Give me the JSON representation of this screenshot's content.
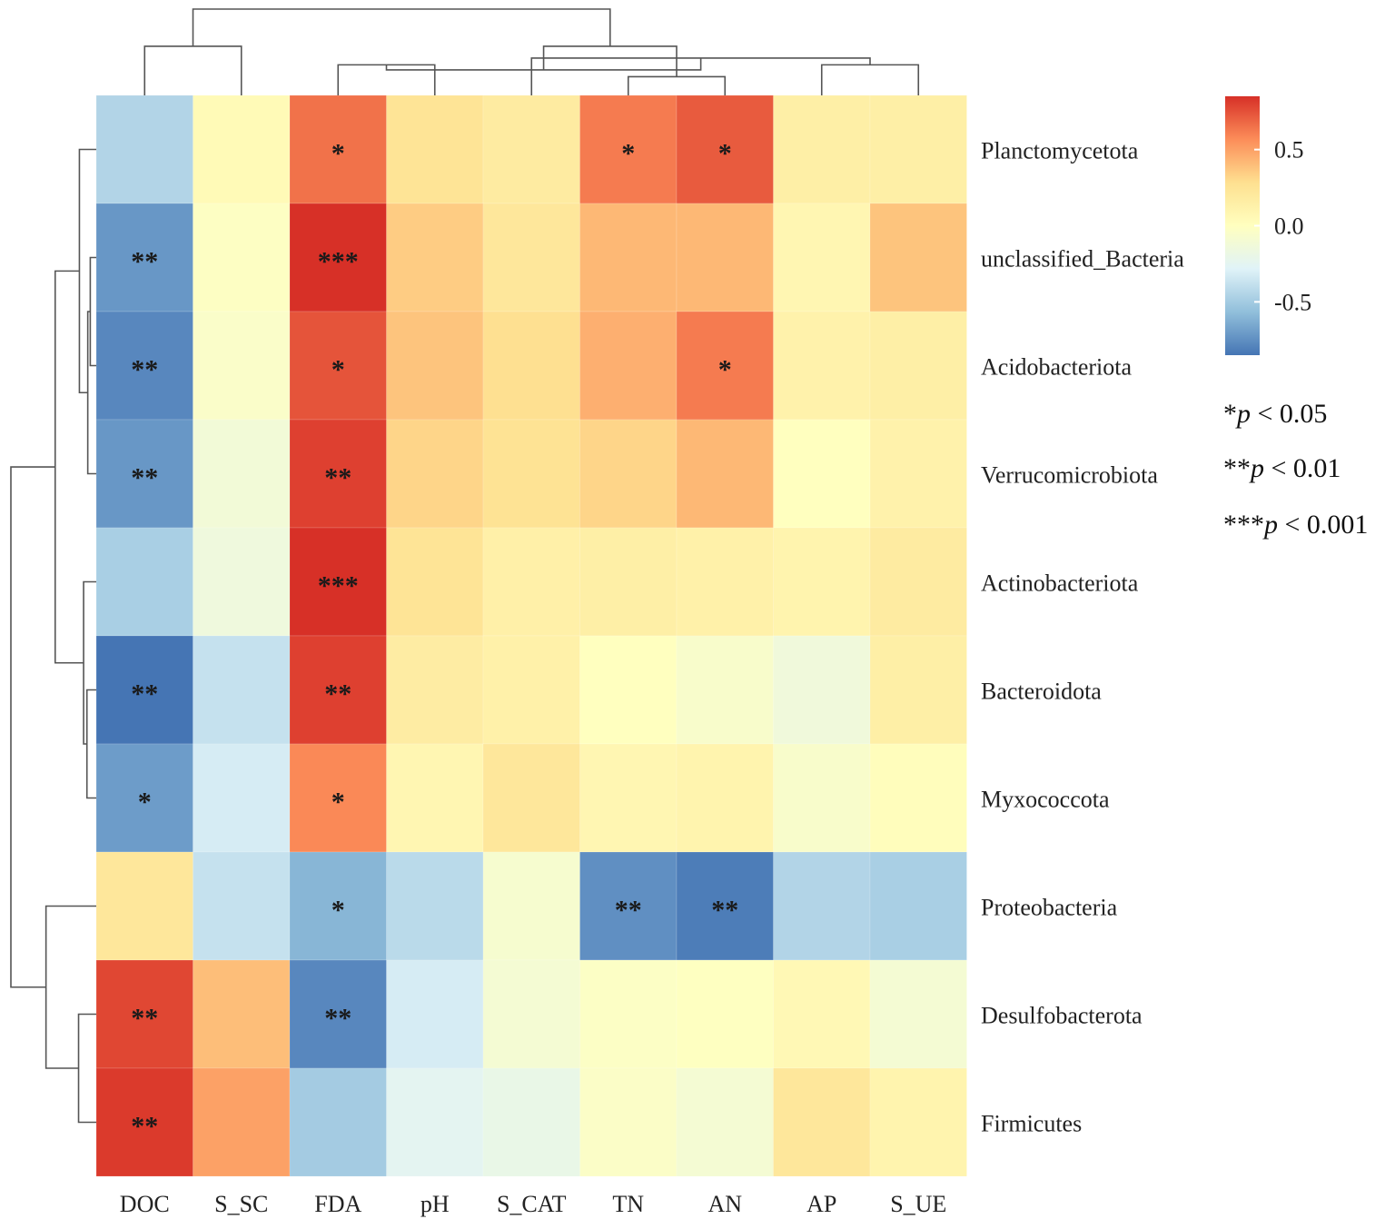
{
  "chart_data": {
    "type": "heatmap",
    "title": "",
    "columns": [
      "DOC",
      "S_SC",
      "FDA",
      "pH",
      "S_CAT",
      "TN",
      "AN",
      "AP",
      "S_UE"
    ],
    "rows": [
      "Planctomycetota",
      "unclassified_Bacteria",
      "Acidobacteriota",
      "Verrucomicrobiota",
      "Actinobacteriota",
      "Bacteroidota",
      "Myxococcota",
      "Proteobacteria",
      "Desulfobacterota",
      "Firmicutes"
    ],
    "values": [
      [
        -0.45,
        0.05,
        0.65,
        0.25,
        0.18,
        0.62,
        0.72,
        0.15,
        0.15
      ],
      [
        -0.72,
        -0.02,
        0.92,
        0.35,
        0.22,
        0.42,
        0.42,
        0.08,
        0.38
      ],
      [
        -0.78,
        -0.05,
        0.74,
        0.38,
        0.28,
        0.45,
        0.62,
        0.12,
        0.15
      ],
      [
        -0.72,
        -0.12,
        0.8,
        0.32,
        0.26,
        0.32,
        0.42,
        0.0,
        0.12
      ],
      [
        -0.48,
        -0.15,
        0.92,
        0.25,
        0.14,
        0.15,
        0.13,
        0.1,
        0.18
      ],
      [
        -0.85,
        -0.38,
        0.8,
        0.17,
        0.13,
        0.0,
        -0.06,
        -0.14,
        0.15
      ],
      [
        -0.7,
        -0.32,
        0.58,
        0.08,
        0.22,
        0.08,
        0.1,
        -0.06,
        0.02
      ],
      [
        0.22,
        -0.38,
        -0.6,
        -0.42,
        -0.08,
        -0.75,
        -0.82,
        -0.45,
        -0.48
      ],
      [
        0.78,
        0.4,
        -0.78,
        -0.32,
        -0.1,
        -0.03,
        -0.01,
        0.06,
        -0.1
      ],
      [
        0.82,
        0.5,
        -0.5,
        -0.25,
        -0.2,
        -0.04,
        -0.1,
        0.22,
        0.1
      ]
    ],
    "significance": [
      [
        "",
        "",
        "*",
        "",
        "",
        "*",
        "*",
        "",
        ""
      ],
      [
        "**",
        "",
        "***",
        "",
        "",
        "",
        "",
        "",
        ""
      ],
      [
        "**",
        "",
        "*",
        "",
        "",
        "",
        "*",
        "",
        ""
      ],
      [
        "**",
        "",
        "**",
        "",
        "",
        "",
        "",
        "",
        ""
      ],
      [
        "",
        "",
        "***",
        "",
        "",
        "",
        "",
        "",
        ""
      ],
      [
        "**",
        "",
        "**",
        "",
        "",
        "",
        "",
        "",
        ""
      ],
      [
        "*",
        "",
        "*",
        "",
        "",
        "",
        "",
        "",
        ""
      ],
      [
        "",
        "",
        "*",
        "",
        "",
        "**",
        "**",
        "",
        ""
      ],
      [
        "**",
        "",
        "**",
        "",
        "",
        "",
        "",
        "",
        ""
      ],
      [
        "**",
        "",
        "",
        "",
        "",
        "",
        "",
        "",
        ""
      ]
    ],
    "colorbar": {
      "min": -0.85,
      "max": 0.85,
      "ticks": [
        0.5,
        0.0,
        -0.5
      ],
      "tick_labels": [
        "0.5",
        "0.0",
        "-0.5"
      ],
      "colors": [
        "#4575b4",
        "#91bfdb",
        "#e0f3f8",
        "#ffffbf",
        "#fee090",
        "#fc8d59",
        "#d73027"
      ]
    },
    "legend": [
      {
        "stars": "*",
        "label": "p < 0.05"
      },
      {
        "stars": "**",
        "label": "p < 0.01"
      },
      {
        "stars": "***",
        "label": "p < 0.001"
      }
    ],
    "column_dendrogram": [
      [
        2,
        3,
        0.34
      ],
      [
        7,
        8,
        0.34
      ],
      [
        5,
        6,
        0.2
      ],
      [
        4,
        10,
        0.42
      ],
      [
        9,
        12,
        0.28
      ],
      [
        11,
        13,
        0.56
      ],
      [
        0,
        1,
        0.56
      ],
      [
        14,
        15,
        1.0
      ]
    ],
    "row_dendrogram": [
      [
        1,
        2,
        0.05
      ],
      [
        10,
        3,
        0.08
      ],
      [
        5,
        6,
        0.09
      ],
      [
        4,
        12,
        0.13
      ],
      [
        0,
        11,
        0.18
      ],
      [
        14,
        13,
        0.47
      ],
      [
        8,
        9,
        0.19
      ],
      [
        7,
        16,
        0.58
      ],
      [
        15,
        17,
        1.0
      ]
    ]
  }
}
